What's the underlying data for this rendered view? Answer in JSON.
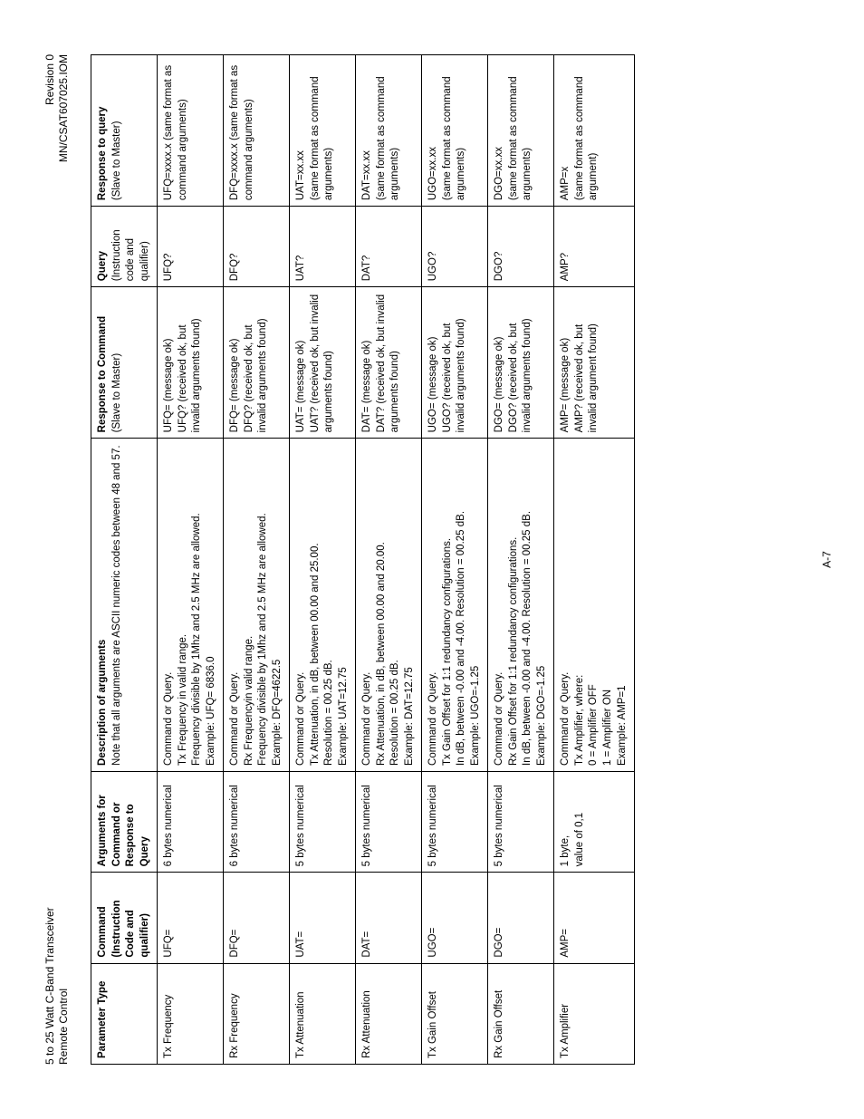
{
  "header": {
    "left_line1": "5 to 25 Watt C-Band Transceiver",
    "left_line2": "Remote Control",
    "right_line1": "Revision 0",
    "right_line2": "MN/CSAT607025.IOM"
  },
  "footer": {
    "page_num": "A-7"
  },
  "columns": {
    "c1": "Parameter Type",
    "c2": "Command (Instruction Code and qualifier)",
    "c3": "Arguments for Command or Response to Query",
    "c4_line1": "Description of arguments",
    "c4_line2": "Note that all arguments are ASCII numeric codes between 48 and 57.",
    "c5_line1": "Response to Command",
    "c5_line2": "(Slave to Master)",
    "c6_line1": "Query",
    "c6_line2": "(Instruction code and qualifier)",
    "c7_line1": "Response to query",
    "c7_line2": "(Slave to Master)"
  },
  "rows": [
    {
      "param": "Tx  Frequency",
      "cmd": "UFQ=",
      "args": "6 bytes numerical",
      "desc": "Command or Query.\nTx Frequency in valid range.\nFrequency divisible by 1Mhz and 2.5 MHz are allowed.\nExample: UFQ= 6836.0",
      "resp_cmd": "UFQ= (message ok)\nUFQ? (received ok, but invalid arguments found)",
      "query": "UFQ?",
      "resp_q": "UFQ=xxxx.x (same format as command arguments)"
    },
    {
      "param": "Rx  Frequency",
      "cmd": "DFQ=",
      "args": "6 bytes numerical",
      "desc": "Command or Query.\nRx Frequencyin valid range.\nFrequency divisible by 1Mhz and 2.5 MHz are allowed.\nExample: DFQ=4622.5",
      "resp_cmd": "DFQ= (message ok)\nDFQ? (received ok, but invalid arguments found)",
      "query": "DFQ?",
      "resp_q": "DFQ=xxxx.x (same format as command arguments)"
    },
    {
      "param": "Tx  Attenuation",
      "cmd": "UAT=",
      "args": "5 bytes numerical",
      "desc": "Command or Query.\nTx Attenuation, in dB, between 00.00 and 25.00.\nResolution = 00.25 dB.\nExample: UAT=12.75",
      "resp_cmd": "UAT= (message ok)\nUAT? (received ok, but invalid arguments found)",
      "query": "UAT?",
      "resp_q": "UAT=xx.xx\n(same format as command arguments)"
    },
    {
      "param": "Rx  Attenuation",
      "cmd": "DAT=",
      "args": "5 bytes numerical",
      "desc": "Command or Query.\nRx Attenuation, in dB, between 00.00 and 20.00.\nResolution = 00.25 dB.\nExample: DAT=12.75",
      "resp_cmd": "DAT= (message ok)\nDAT? (received ok, but invalid arguments found)",
      "query": "DAT?",
      "resp_q": "DAT=xx.xx\n(same format as command arguments)"
    },
    {
      "param": "Tx  Gain Offset",
      "cmd": "UGO=",
      "args": "5 bytes numerical",
      "desc": "Command or Query.\nTx Gain Offset for 1:1 redundancy configurations.\nIn dB, between -0.00 and -4.00. Resolution = 00.25 dB.\nExample: UGO=-1.25",
      "resp_cmd": "UGO= (message ok)\nUGO? (received ok, but invalid arguments found)",
      "query": "UGO?",
      "resp_q": "UGO=xx.xx\n(same format as command arguments)"
    },
    {
      "param": "Rx  Gain Offset",
      "cmd": "DGO=",
      "args": "5 bytes numerical",
      "desc": "Command or Query.\nRx Gain Offset for 1:1 redundancy configurations.\nIn dB, between -0.00 and -4.00. Resolution = 00.25 dB.\nExample: DGO=-1.25",
      "resp_cmd": "DGO= (message ok)\nDGO? (received ok, but invalid arguments found)",
      "query": "DGO?",
      "resp_q": "DGO=xx.xx\n(same format as command arguments)"
    },
    {
      "param": "Tx  Amplifier",
      "cmd": "AMP=",
      "args": "1 byte,\nvalue of  0,1",
      "desc": "Command or Query.\nTx Amplifier, where:\n0 = Amplifier OFF\n1 = Amplifier ON\nExample: AMP=1",
      "resp_cmd": "AMP= (message ok)\nAMP? (received ok, but invalid argument found)",
      "query": "AMP?",
      "resp_q": "AMP=x\n(same format as command argument)"
    }
  ]
}
